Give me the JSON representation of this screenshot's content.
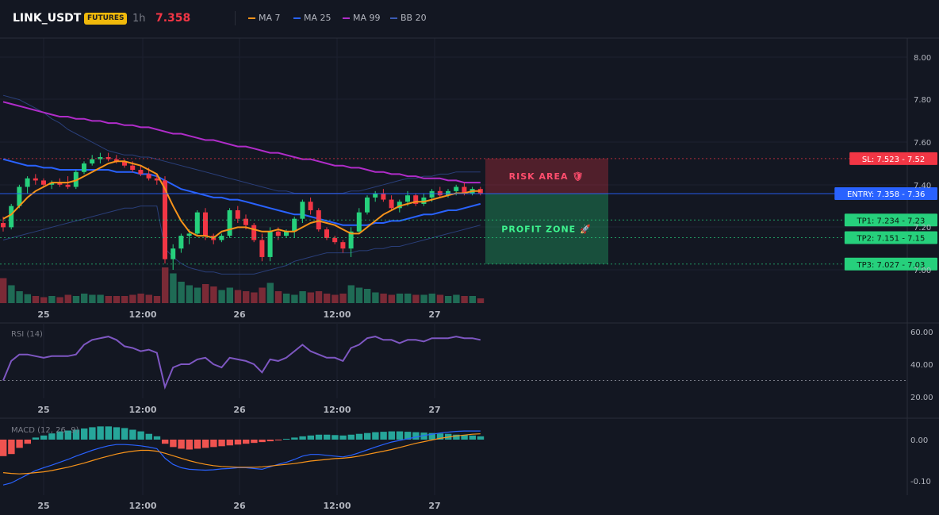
{
  "header": {
    "symbol": "LINK_USDT",
    "badge": "FUTURES",
    "timeframe": "1h",
    "price": "7.358",
    "legend": [
      {
        "label": "MA 7",
        "color": "#f7931a"
      },
      {
        "label": "MA 25",
        "color": "#2962ff"
      },
      {
        "label": "MA 99",
        "color": "#b02cc9"
      },
      {
        "label": "BB 20",
        "color": "#1e3a8a"
      }
    ]
  },
  "colors": {
    "up": "#26d07c",
    "down": "#f23645",
    "ma7": "#f7931a",
    "ma25": "#2962ff",
    "ma99": "#b02cc9",
    "bb": "#1e3a8a"
  },
  "chart_data": [
    {
      "type": "line",
      "x_ticks": [
        "25",
        "12:00",
        "26",
        "12:00",
        "27"
      ],
      "y_ticks": [
        "8.00",
        "7.80",
        "7.60",
        "7.40",
        "7.20",
        "7.00"
      ],
      "ylim": [
        6.9,
        8.05
      ],
      "candles": [
        [
          7.22,
          7.25,
          7.18,
          7.2
        ],
        [
          7.2,
          7.31,
          7.19,
          7.3
        ],
        [
          7.3,
          7.4,
          7.29,
          7.39
        ],
        [
          7.39,
          7.44,
          7.36,
          7.43
        ],
        [
          7.43,
          7.45,
          7.4,
          7.42
        ],
        [
          7.42,
          7.43,
          7.39,
          7.4
        ],
        [
          7.4,
          7.42,
          7.38,
          7.41
        ],
        [
          7.41,
          7.43,
          7.39,
          7.4
        ],
        [
          7.4,
          7.44,
          7.38,
          7.39
        ],
        [
          7.39,
          7.47,
          7.38,
          7.46
        ],
        [
          7.46,
          7.51,
          7.45,
          7.5
        ],
        [
          7.5,
          7.54,
          7.49,
          7.52
        ],
        [
          7.52,
          7.55,
          7.5,
          7.53
        ],
        [
          7.53,
          7.55,
          7.51,
          7.52
        ],
        [
          7.52,
          7.54,
          7.5,
          7.51
        ],
        [
          7.51,
          7.52,
          7.48,
          7.49
        ],
        [
          7.49,
          7.51,
          7.46,
          7.47
        ],
        [
          7.47,
          7.49,
          7.44,
          7.45
        ],
        [
          7.45,
          7.48,
          7.42,
          7.43
        ],
        [
          7.43,
          7.45,
          7.4,
          7.42
        ],
        [
          7.42,
          7.44,
          7.03,
          7.05
        ],
        [
          7.05,
          7.12,
          7.0,
          7.1
        ],
        [
          7.1,
          7.17,
          7.08,
          7.16
        ],
        [
          7.16,
          7.19,
          7.12,
          7.17
        ],
        [
          7.17,
          7.28,
          7.16,
          7.27
        ],
        [
          7.27,
          7.29,
          7.14,
          7.16
        ],
        [
          7.16,
          7.17,
          7.12,
          7.14
        ],
        [
          7.14,
          7.17,
          7.13,
          7.16
        ],
        [
          7.16,
          7.29,
          7.15,
          7.28
        ],
        [
          7.28,
          7.3,
          7.22,
          7.24
        ],
        [
          7.24,
          7.26,
          7.19,
          7.21
        ],
        [
          7.21,
          7.22,
          7.13,
          7.14
        ],
        [
          7.14,
          7.17,
          7.04,
          7.06
        ],
        [
          7.06,
          7.2,
          7.04,
          7.18
        ],
        [
          7.18,
          7.2,
          7.14,
          7.16
        ],
        [
          7.16,
          7.19,
          7.15,
          7.18
        ],
        [
          7.18,
          7.25,
          7.15,
          7.24
        ],
        [
          7.24,
          7.33,
          7.22,
          7.32
        ],
        [
          7.32,
          7.34,
          7.26,
          7.28
        ],
        [
          7.28,
          7.29,
          7.18,
          7.19
        ],
        [
          7.19,
          7.2,
          7.14,
          7.15
        ],
        [
          7.15,
          7.16,
          7.12,
          7.13
        ],
        [
          7.13,
          7.14,
          7.08,
          7.1
        ],
        [
          7.1,
          7.2,
          7.06,
          7.18
        ],
        [
          7.18,
          7.29,
          7.17,
          7.27
        ],
        [
          7.27,
          7.35,
          7.26,
          7.34
        ],
        [
          7.34,
          7.37,
          7.32,
          7.36
        ],
        [
          7.36,
          7.38,
          7.32,
          7.33
        ],
        [
          7.33,
          7.35,
          7.28,
          7.29
        ],
        [
          7.29,
          7.33,
          7.27,
          7.32
        ],
        [
          7.32,
          7.37,
          7.3,
          7.35
        ],
        [
          7.35,
          7.36,
          7.3,
          7.31
        ],
        [
          7.31,
          7.36,
          7.3,
          7.34
        ],
        [
          7.34,
          7.38,
          7.32,
          7.37
        ],
        [
          7.37,
          7.39,
          7.34,
          7.35
        ],
        [
          7.35,
          7.38,
          7.34,
          7.37
        ],
        [
          7.37,
          7.4,
          7.35,
          7.39
        ],
        [
          7.39,
          7.41,
          7.35,
          7.36
        ],
        [
          7.36,
          7.39,
          7.35,
          7.38
        ],
        [
          7.38,
          7.39,
          7.35,
          7.36
        ]
      ],
      "volume": [
        42,
        30,
        20,
        15,
        12,
        10,
        12,
        10,
        14,
        12,
        16,
        14,
        14,
        12,
        12,
        12,
        14,
        16,
        14,
        12,
        60,
        50,
        36,
        30,
        26,
        32,
        28,
        22,
        26,
        22,
        20,
        18,
        26,
        34,
        20,
        16,
        14,
        20,
        18,
        20,
        16,
        14,
        16,
        30,
        26,
        24,
        18,
        16,
        14,
        16,
        16,
        14,
        14,
        16,
        14,
        12,
        14,
        12,
        12,
        8
      ],
      "ma7": [
        7.24,
        7.26,
        7.3,
        7.34,
        7.37,
        7.39,
        7.41,
        7.41,
        7.41,
        7.42,
        7.44,
        7.46,
        7.48,
        7.5,
        7.51,
        7.51,
        7.5,
        7.49,
        7.47,
        7.45,
        7.38,
        7.3,
        7.23,
        7.18,
        7.16,
        7.16,
        7.15,
        7.18,
        7.19,
        7.2,
        7.2,
        7.19,
        7.18,
        7.18,
        7.19,
        7.18,
        7.18,
        7.2,
        7.22,
        7.23,
        7.22,
        7.21,
        7.19,
        7.17,
        7.17,
        7.2,
        7.23,
        7.26,
        7.28,
        7.3,
        7.31,
        7.32,
        7.32,
        7.33,
        7.34,
        7.35,
        7.36,
        7.36,
        7.37,
        7.37
      ],
      "ma25": [
        7.52,
        7.51,
        7.5,
        7.49,
        7.49,
        7.48,
        7.48,
        7.47,
        7.47,
        7.47,
        7.47,
        7.47,
        7.47,
        7.47,
        7.46,
        7.46,
        7.46,
        7.45,
        7.45,
        7.44,
        7.42,
        7.4,
        7.38,
        7.37,
        7.36,
        7.35,
        7.34,
        7.34,
        7.33,
        7.33,
        7.32,
        7.31,
        7.3,
        7.29,
        7.28,
        7.27,
        7.26,
        7.26,
        7.25,
        7.24,
        7.23,
        7.22,
        7.21,
        7.21,
        7.21,
        7.21,
        7.22,
        7.22,
        7.23,
        7.23,
        7.24,
        7.25,
        7.26,
        7.26,
        7.27,
        7.28,
        7.28,
        7.29,
        7.3,
        7.31
      ],
      "ma99": [
        7.79,
        7.78,
        7.77,
        7.76,
        7.75,
        7.74,
        7.73,
        7.72,
        7.72,
        7.71,
        7.71,
        7.7,
        7.7,
        7.69,
        7.69,
        7.68,
        7.68,
        7.67,
        7.67,
        7.66,
        7.65,
        7.64,
        7.64,
        7.63,
        7.62,
        7.61,
        7.61,
        7.6,
        7.59,
        7.58,
        7.58,
        7.57,
        7.56,
        7.55,
        7.55,
        7.54,
        7.53,
        7.52,
        7.52,
        7.51,
        7.5,
        7.49,
        7.49,
        7.48,
        7.48,
        7.47,
        7.46,
        7.46,
        7.45,
        7.45,
        7.44,
        7.44,
        7.43,
        7.43,
        7.43,
        7.42,
        7.42,
        7.41,
        7.41,
        7.41
      ],
      "bb_upper": [
        7.82,
        7.81,
        7.8,
        7.78,
        7.76,
        7.74,
        7.71,
        7.69,
        7.66,
        7.64,
        7.62,
        7.6,
        7.58,
        7.56,
        7.55,
        7.54,
        7.54,
        7.53,
        7.53,
        7.52,
        7.51,
        7.5,
        7.49,
        7.48,
        7.47,
        7.46,
        7.45,
        7.44,
        7.43,
        7.42,
        7.41,
        7.4,
        7.39,
        7.38,
        7.37,
        7.37,
        7.36,
        7.36,
        7.36,
        7.36,
        7.36,
        7.36,
        7.36,
        7.37,
        7.37,
        7.38,
        7.39,
        7.4,
        7.41,
        7.42,
        7.43,
        7.43,
        7.44,
        7.44,
        7.45,
        7.45,
        7.46,
        7.46,
        7.46,
        7.46
      ],
      "bb_lower": [
        7.14,
        7.15,
        7.16,
        7.17,
        7.18,
        7.19,
        7.2,
        7.21,
        7.22,
        7.23,
        7.24,
        7.25,
        7.26,
        7.27,
        7.28,
        7.29,
        7.29,
        7.3,
        7.3,
        7.3,
        7.1,
        7.06,
        7.03,
        7.01,
        7.0,
        6.99,
        6.99,
        6.98,
        6.98,
        6.98,
        6.98,
        6.98,
        6.99,
        7.0,
        7.01,
        7.02,
        7.04,
        7.05,
        7.06,
        7.07,
        7.08,
        7.08,
        7.08,
        7.08,
        7.09,
        7.09,
        7.1,
        7.1,
        7.11,
        7.11,
        7.12,
        7.13,
        7.14,
        7.15,
        7.16,
        7.17,
        7.18,
        7.19,
        7.2,
        7.21
      ],
      "levels": [
        {
          "label": "SL: 7.523 - 7.52",
          "value": 7.523,
          "color": "#f23645"
        },
        {
          "label": "ENTRY: 7.358 - 7.36",
          "value": 7.358,
          "color": "#2962ff"
        },
        {
          "label": "TP1: 7.234 - 7.23",
          "value": 7.234,
          "color": "#26d07c"
        },
        {
          "label": "TP2: 7.151 - 7.15",
          "value": 7.151,
          "color": "#26d07c"
        },
        {
          "label": "TP3: 7.027 - 7.03",
          "value": 7.027,
          "color": "#26d07c"
        }
      ],
      "zones": [
        {
          "label": "RISK AREA 🛡",
          "from": 7.358,
          "to": 7.523,
          "color": "#f23645"
        },
        {
          "label": "PROFIT ZONE 🚀",
          "from": 7.027,
          "to": 7.358,
          "color": "#26d07c"
        }
      ]
    },
    {
      "type": "line",
      "title": "RSI (14)",
      "y_ticks": [
        "60.00",
        "40.00",
        "20.00"
      ],
      "ylim": [
        20,
        60
      ],
      "level": 30,
      "values": [
        30,
        42,
        46,
        46,
        45,
        44,
        45,
        45,
        45,
        46,
        52,
        55,
        56,
        57,
        55,
        51,
        50,
        48,
        49,
        47,
        26,
        38,
        40,
        40,
        43,
        44,
        40,
        38,
        44,
        43,
        42,
        40,
        35,
        43,
        42,
        44,
        48,
        52,
        48,
        46,
        44,
        44,
        42,
        50,
        52,
        56,
        57,
        55,
        55,
        53,
        55,
        55,
        54,
        56,
        56,
        56,
        57,
        56,
        56,
        55
      ]
    },
    {
      "type": "bar",
      "title": "MACD (12, 26, 9)",
      "y_ticks": [
        "0.00",
        "-0.10"
      ],
      "ylim": [
        -0.14,
        0.04
      ],
      "histogram": [
        -0.04,
        -0.035,
        -0.02,
        -0.01,
        0.005,
        0.01,
        0.015,
        0.02,
        0.022,
        0.024,
        0.027,
        0.03,
        0.032,
        0.032,
        0.03,
        0.028,
        0.024,
        0.02,
        0.014,
        0.008,
        -0.01,
        -0.018,
        -0.022,
        -0.024,
        -0.022,
        -0.02,
        -0.018,
        -0.016,
        -0.014,
        -0.012,
        -0.01,
        -0.008,
        -0.006,
        -0.004,
        -0.002,
        0.002,
        0.005,
        0.008,
        0.01,
        0.012,
        0.012,
        0.011,
        0.01,
        0.012,
        0.014,
        0.016,
        0.018,
        0.019,
        0.02,
        0.02,
        0.019,
        0.018,
        0.017,
        0.016,
        0.015,
        0.014,
        0.012,
        0.011,
        0.01,
        0.008
      ],
      "macd": [
        -0.11,
        -0.105,
        -0.095,
        -0.085,
        -0.075,
        -0.068,
        -0.062,
        -0.055,
        -0.048,
        -0.04,
        -0.033,
        -0.026,
        -0.02,
        -0.015,
        -0.012,
        -0.012,
        -0.013,
        -0.015,
        -0.018,
        -0.022,
        -0.045,
        -0.06,
        -0.068,
        -0.072,
        -0.073,
        -0.074,
        -0.073,
        -0.071,
        -0.07,
        -0.068,
        -0.068,
        -0.07,
        -0.072,
        -0.066,
        -0.06,
        -0.055,
        -0.048,
        -0.04,
        -0.036,
        -0.036,
        -0.038,
        -0.04,
        -0.042,
        -0.038,
        -0.032,
        -0.025,
        -0.018,
        -0.012,
        -0.006,
        -0.002,
        0.002,
        0.006,
        0.01,
        0.013,
        0.016,
        0.018,
        0.02,
        0.021,
        0.021,
        0.021
      ],
      "signal": [
        -0.08,
        -0.082,
        -0.083,
        -0.082,
        -0.08,
        -0.078,
        -0.075,
        -0.071,
        -0.067,
        -0.062,
        -0.057,
        -0.051,
        -0.045,
        -0.04,
        -0.035,
        -0.031,
        -0.028,
        -0.026,
        -0.026,
        -0.028,
        -0.033,
        -0.039,
        -0.045,
        -0.051,
        -0.056,
        -0.06,
        -0.063,
        -0.065,
        -0.066,
        -0.067,
        -0.067,
        -0.067,
        -0.066,
        -0.064,
        -0.062,
        -0.06,
        -0.058,
        -0.055,
        -0.052,
        -0.05,
        -0.048,
        -0.046,
        -0.045,
        -0.043,
        -0.04,
        -0.036,
        -0.032,
        -0.028,
        -0.024,
        -0.019,
        -0.014,
        -0.009,
        -0.005,
        -0.001,
        0.003,
        0.006,
        0.009,
        0.011,
        0.013,
        0.014
      ]
    }
  ]
}
